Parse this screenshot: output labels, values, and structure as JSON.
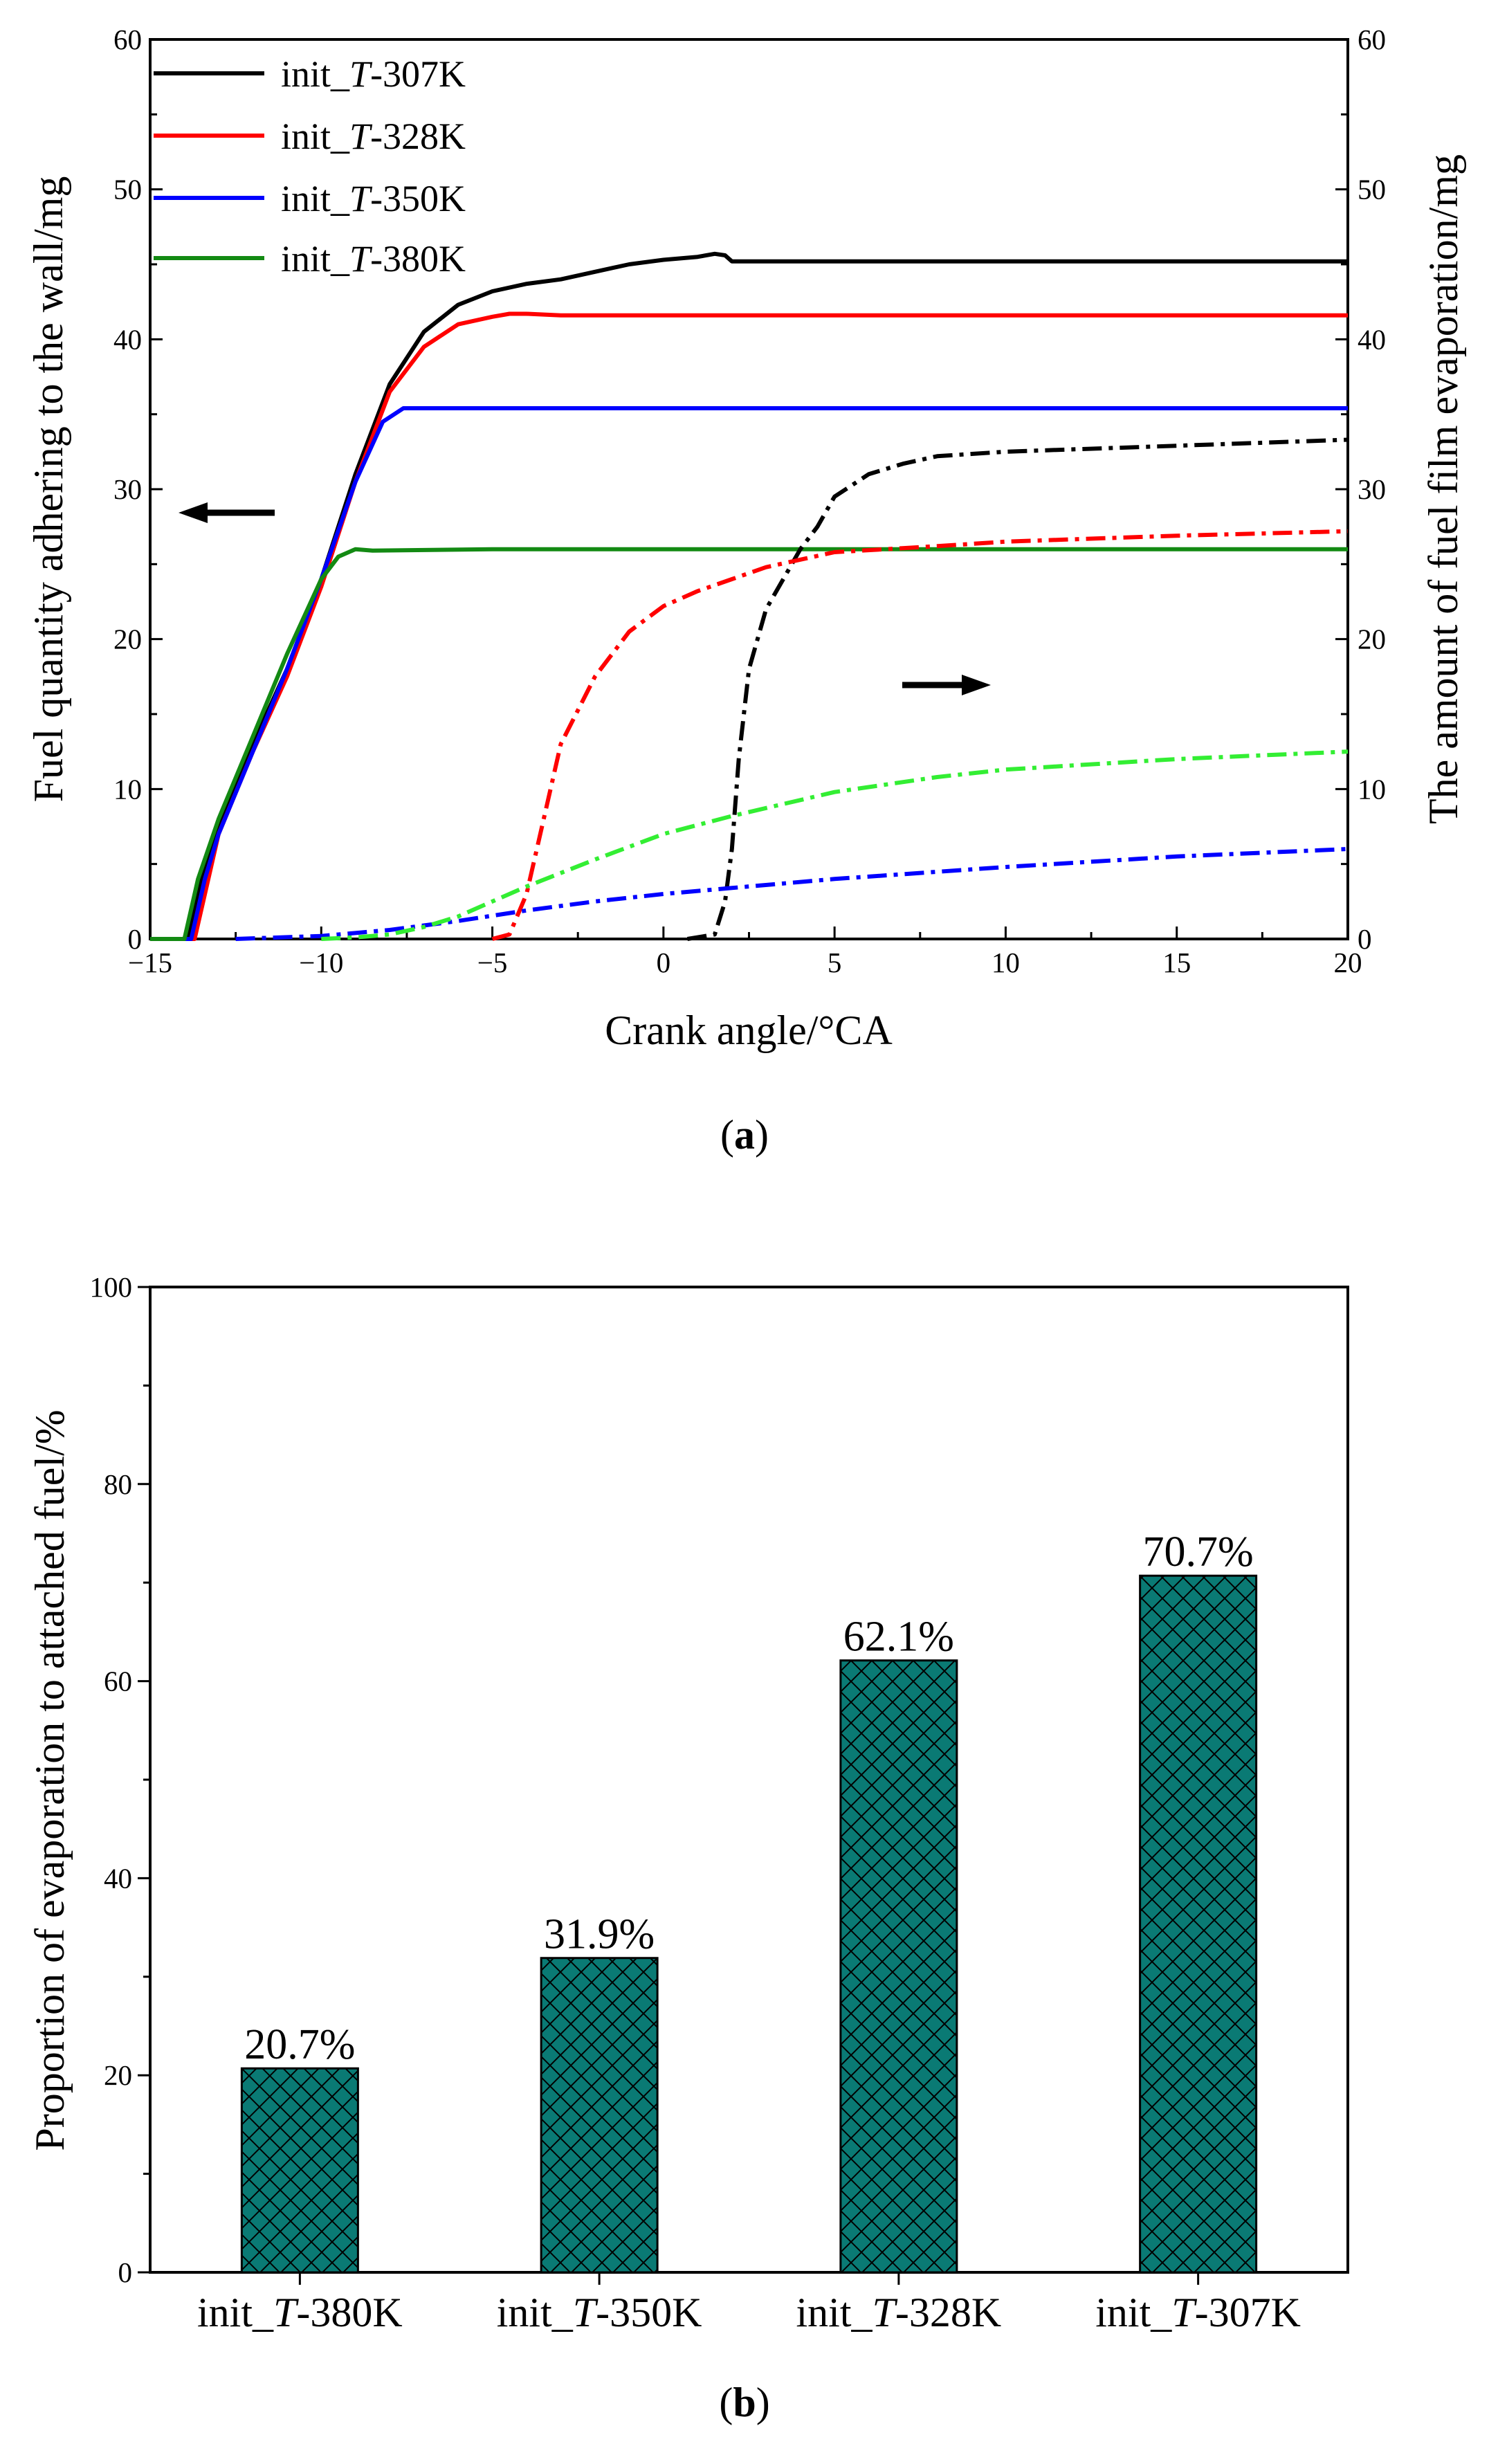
{
  "chart_data": [
    {
      "type": "line",
      "caption": "a",
      "xlabel": "Crank angle/°CA",
      "ylabel_left": "Fuel quantity adhering to the wall/mg",
      "ylabel_right": "The amount of fuel film evaporation/mg",
      "xlim": [
        -15,
        20
      ],
      "ylim_left": [
        0,
        60
      ],
      "ylim_right": [
        0,
        60
      ],
      "x_ticks": [
        -15,
        -10,
        -5,
        0,
        5,
        10,
        15,
        20
      ],
      "x_tick_labels": [
        "−15",
        "−10",
        "−5",
        "0",
        "5",
        "10",
        "15",
        "20"
      ],
      "y_ticks": [
        0,
        10,
        20,
        30,
        40,
        50,
        60
      ],
      "legend": {
        "placement": "top-left",
        "entries": [
          {
            "prefix": "init_",
            "italic": "T",
            "suffix": "-307K",
            "color": "#000000"
          },
          {
            "prefix": "init_",
            "italic": "T",
            "suffix": "-328K",
            "color": "#ff0000"
          },
          {
            "prefix": "init_",
            "italic": "T",
            "suffix": "-350K",
            "color": "#0000ff"
          },
          {
            "prefix": "init_",
            "italic": "T",
            "suffix": "-380K",
            "color": "#138a13"
          }
        ]
      },
      "annotations": [
        {
          "arrow": "left",
          "meaning": "left axis (adhering fuel, solid lines)"
        },
        {
          "arrow": "right",
          "meaning": "right axis (film evaporation, dash-dot lines)"
        }
      ],
      "series": [
        {
          "name": "init_T-307K adhering",
          "axis": "left",
          "style": "solid",
          "color": "#000000",
          "x": [
            -15,
            -13.9,
            -13.5,
            -13,
            -12,
            -11,
            -10,
            -9,
            -8,
            -7,
            -6,
            -5,
            -4,
            -3,
            -2,
            -1,
            0,
            1,
            1.5,
            1.8,
            2,
            5,
            10,
            15,
            20
          ],
          "y": [
            0,
            0,
            4,
            7.5,
            13,
            18,
            24,
            31,
            37,
            40.5,
            42.3,
            43.2,
            43.7,
            44,
            44.5,
            45,
            45.3,
            45.5,
            45.7,
            45.6,
            45.2,
            45.2,
            45.2,
            45.2,
            45.2
          ]
        },
        {
          "name": "init_T-328K adhering",
          "axis": "left",
          "style": "solid",
          "color": "#ff0000",
          "x": [
            -15,
            -13.7,
            -13.3,
            -13,
            -12,
            -11,
            -10,
            -9,
            -8,
            -7,
            -6,
            -5,
            -4.5,
            -4,
            -3,
            0,
            5,
            10,
            15,
            20
          ],
          "y": [
            0,
            0,
            4,
            7,
            12.5,
            17.5,
            23.5,
            30.5,
            36.5,
            39.5,
            41,
            41.5,
            41.7,
            41.7,
            41.6,
            41.6,
            41.6,
            41.6,
            41.6,
            41.6
          ]
        },
        {
          "name": "init_T-350K adhering",
          "axis": "left",
          "style": "solid",
          "color": "#0000ff",
          "x": [
            -15,
            -13.8,
            -13.4,
            -13,
            -12,
            -11,
            -10,
            -9,
            -8.2,
            -7.6,
            -7,
            -5,
            0,
            5,
            10,
            15,
            20
          ],
          "y": [
            0,
            0,
            4,
            7,
            12.5,
            18,
            24,
            30.5,
            34.5,
            35.4,
            35.4,
            35.4,
            35.4,
            35.4,
            35.4,
            35.4,
            35.4
          ]
        },
        {
          "name": "init_T-380K adhering",
          "axis": "left",
          "style": "solid",
          "color": "#138a13",
          "x": [
            -15,
            -14,
            -13.6,
            -13,
            -12,
            -11,
            -10,
            -9.5,
            -9,
            -8.5,
            -5,
            0,
            5,
            10,
            15,
            20
          ],
          "y": [
            0,
            0,
            4,
            8,
            13.5,
            19,
            24,
            25.5,
            26,
            25.9,
            26,
            26,
            26,
            26,
            26,
            26
          ]
        },
        {
          "name": "init_T-307K evaporation",
          "axis": "right",
          "style": "dash-dot",
          "color": "#000000",
          "x": [
            0.7,
            1.5,
            1.8,
            2,
            2.2,
            2.5,
            3,
            3.5,
            4,
            4.5,
            5,
            6,
            7,
            8,
            10,
            15,
            20
          ],
          "y": [
            0,
            0.3,
            2.5,
            6,
            12,
            18,
            22,
            24,
            26,
            27.5,
            29.5,
            31,
            31.7,
            32.2,
            32.5,
            32.9,
            33.3
          ]
        },
        {
          "name": "init_T-328K evaporation",
          "axis": "right",
          "style": "dash-dot",
          "color": "#ff0000",
          "x": [
            -5,
            -4.5,
            -4,
            -3.5,
            -3,
            -2,
            -1,
            0,
            1,
            2,
            3,
            4,
            5,
            8,
            10,
            15,
            20
          ],
          "y": [
            0,
            0.3,
            3,
            8,
            13,
            17.5,
            20.5,
            22.2,
            23.2,
            24,
            24.8,
            25.3,
            25.8,
            26.2,
            26.5,
            26.9,
            27.2
          ]
        },
        {
          "name": "init_T-350K evaporation",
          "axis": "right",
          "style": "dash-dot",
          "color": "#0000ff",
          "x": [
            -12.5,
            -10,
            -8,
            -6,
            -4,
            -2,
            0,
            2,
            5,
            10,
            15,
            20
          ],
          "y": [
            0,
            0.2,
            0.6,
            1.2,
            1.9,
            2.5,
            3,
            3.4,
            4,
            4.8,
            5.5,
            6
          ]
        },
        {
          "name": "init_T-380K evaporation",
          "axis": "right",
          "style": "dash-dot",
          "color": "#33ee33",
          "x": [
            -10,
            -9,
            -8,
            -7,
            -6,
            -5,
            -4,
            -2,
            0,
            2,
            5,
            8,
            10,
            15,
            20
          ],
          "y": [
            0,
            0.1,
            0.3,
            0.8,
            1.5,
            2.5,
            3.5,
            5.3,
            7,
            8.2,
            9.8,
            10.8,
            11.3,
            12,
            12.5
          ]
        }
      ]
    },
    {
      "type": "bar",
      "caption": "b",
      "xlabel": "",
      "ylabel": "Proportion of evaporation to attached fuel/%",
      "ylim": [
        0,
        100
      ],
      "y_ticks": [
        0,
        20,
        40,
        60,
        80,
        100
      ],
      "categories": [
        {
          "prefix": "init_",
          "italic": "T",
          "suffix": "-380K"
        },
        {
          "prefix": "init_",
          "italic": "T",
          "suffix": "-350K"
        },
        {
          "prefix": "init_",
          "italic": "T",
          "suffix": "-328K"
        },
        {
          "prefix": "init_",
          "italic": "T",
          "suffix": "-307K"
        }
      ],
      "values": [
        20.7,
        31.9,
        62.1,
        70.7
      ],
      "labels": [
        "20.7%",
        "31.9%",
        "62.1%",
        "70.7%"
      ],
      "bar_color": "#0a7a74",
      "hatch": "crosshatch"
    }
  ]
}
